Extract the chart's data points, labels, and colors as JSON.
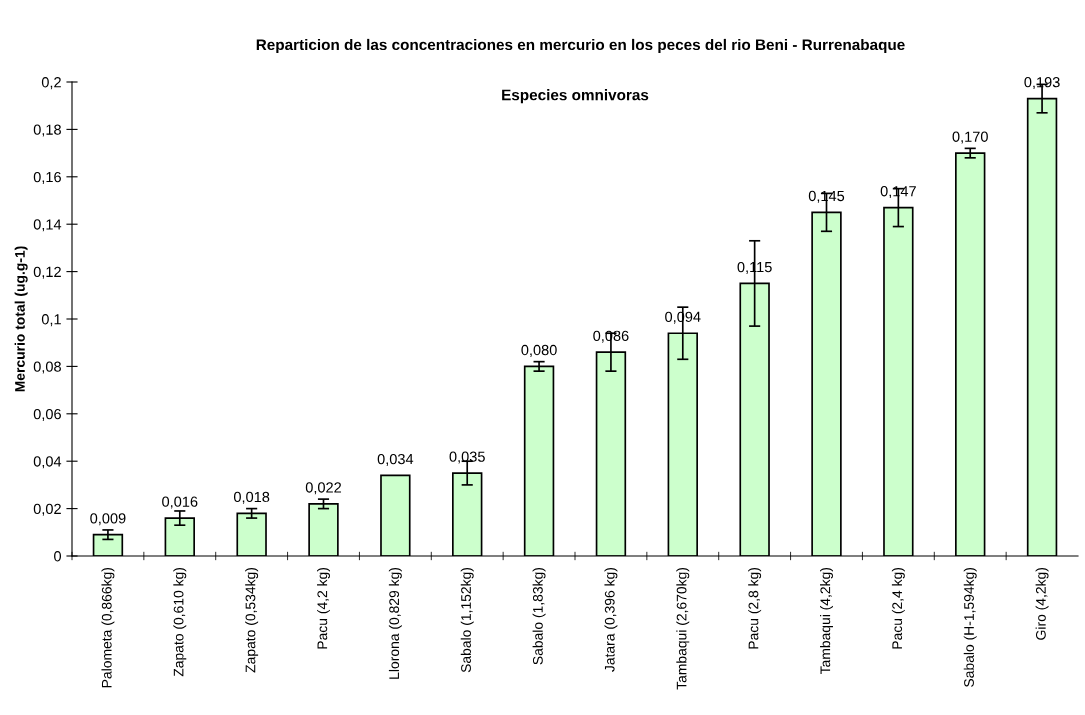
{
  "chart_data": {
    "type": "bar",
    "title": "Reparticion de las concentraciones en mercurio en los peces del rio Beni - Rurrenabaque",
    "subtitle": "Especies omnivoras",
    "ylabel": "Mercurio total (ug.g-1)",
    "categories": [
      "Palometa (0,866kg)",
      "Zapato (0,610 kg)",
      "Zapato (0,534kg)",
      "Pacu (4,2 kg)",
      "Llorona (0,829 kg)",
      "Sabalo (1,152kg)",
      "Sabalo (1,83kg)",
      "Jatara (0,396 kg)",
      "Tambaqui (2,670kg)",
      "Pacu (2,8 kg)",
      "Tambaqui (4,2kg)",
      "Pacu (2,4 kg)",
      "Sabalo (H-1,594kg)",
      "Giro (4,2kg)"
    ],
    "values": [
      0.009,
      0.016,
      0.018,
      0.022,
      0.034,
      0.035,
      0.08,
      0.086,
      0.094,
      0.115,
      0.145,
      0.147,
      0.17,
      0.193
    ],
    "value_labels": [
      "0,009",
      "0,016",
      "0,018",
      "0,022",
      "0,034",
      "0,035",
      "0,080",
      "0,086",
      "0,094",
      "0,115",
      "0,145",
      "0,147",
      "0,170",
      "0,193"
    ],
    "errors": [
      0.002,
      0.003,
      0.002,
      0.002,
      null,
      0.005,
      0.002,
      0.008,
      0.011,
      0.018,
      0.008,
      0.008,
      0.002,
      0.006
    ],
    "color": "#ccffcc",
    "ylim": [
      0,
      0.2
    ],
    "yticks": [
      0,
      {
        "value": 0.02,
        "label": "0,02"
      },
      {
        "value": 0.04,
        "label": "0,04"
      },
      {
        "value": 0.06,
        "label": "0,06"
      },
      {
        "value": 0.08,
        "label": "0,08"
      },
      {
        "value": 0.1,
        "label": "0,1"
      },
      {
        "value": 0.12,
        "label": "0,12"
      },
      {
        "value": 0.14,
        "label": "0,14"
      },
      {
        "value": 0.16,
        "label": "0,16"
      },
      {
        "value": 0.18,
        "label": "0,18"
      },
      {
        "value": 0.2,
        "label": "0,2"
      }
    ],
    "grid": false,
    "legend": false
  }
}
